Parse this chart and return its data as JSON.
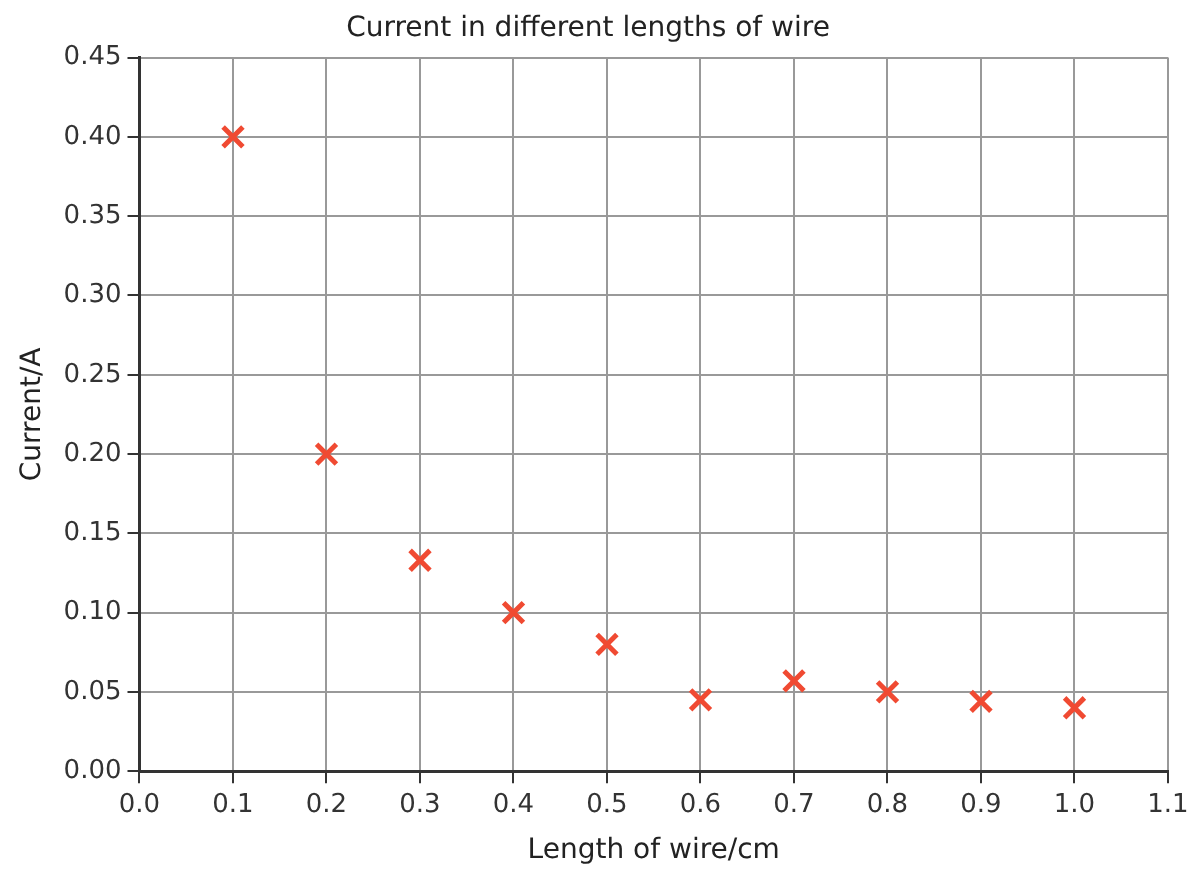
{
  "chart_data": {
    "type": "scatter",
    "title": "Current in different lengths of wire",
    "xlabel": "Length of wire/cm",
    "ylabel": "Current/A",
    "x": [
      0.1,
      0.2,
      0.3,
      0.4,
      0.5,
      0.6,
      0.7,
      0.8,
      0.9,
      1.0
    ],
    "series": [
      {
        "color": "#f04a32",
        "values": [
          0.4,
          0.2,
          0.133,
          0.1,
          0.08,
          0.045,
          0.057,
          0.05,
          0.044,
          0.04
        ]
      }
    ],
    "xlim": [
      0,
      1.1
    ],
    "xticks": [
      {
        "value": 0,
        "label": "0.0"
      },
      {
        "value": 0.1,
        "label": "0.1"
      },
      {
        "value": 0.2,
        "label": "0.2"
      },
      {
        "value": 0.3,
        "label": "0.3"
      },
      {
        "value": 0.4,
        "label": "0.4"
      },
      {
        "value": 0.5,
        "label": "0.5"
      },
      {
        "value": 0.6,
        "label": "0.6"
      },
      {
        "value": 0.7,
        "label": "0.7"
      },
      {
        "value": 0.8,
        "label": "0.8"
      },
      {
        "value": 0.9,
        "label": "0.9"
      },
      {
        "value": 1.0,
        "label": "1.0"
      },
      {
        "value": 1.1,
        "label": "1.1"
      }
    ],
    "ylim": [
      0,
      0.45
    ],
    "yticks": [
      {
        "value": 0,
        "label": "0.00"
      },
      {
        "value": 0.05,
        "label": "0.05"
      },
      {
        "value": 0.1,
        "label": "0.10"
      },
      {
        "value": 0.15,
        "label": "0.15"
      },
      {
        "value": 0.2,
        "label": "0.20"
      },
      {
        "value": 0.25,
        "label": "0.25"
      },
      {
        "value": 0.3,
        "label": "0.30"
      },
      {
        "value": 0.35,
        "label": "0.35"
      },
      {
        "value": 0.4,
        "label": "0.40"
      },
      {
        "value": 0.45,
        "label": "0.45"
      }
    ],
    "grid": true,
    "legend": false,
    "marker": "cross"
  }
}
